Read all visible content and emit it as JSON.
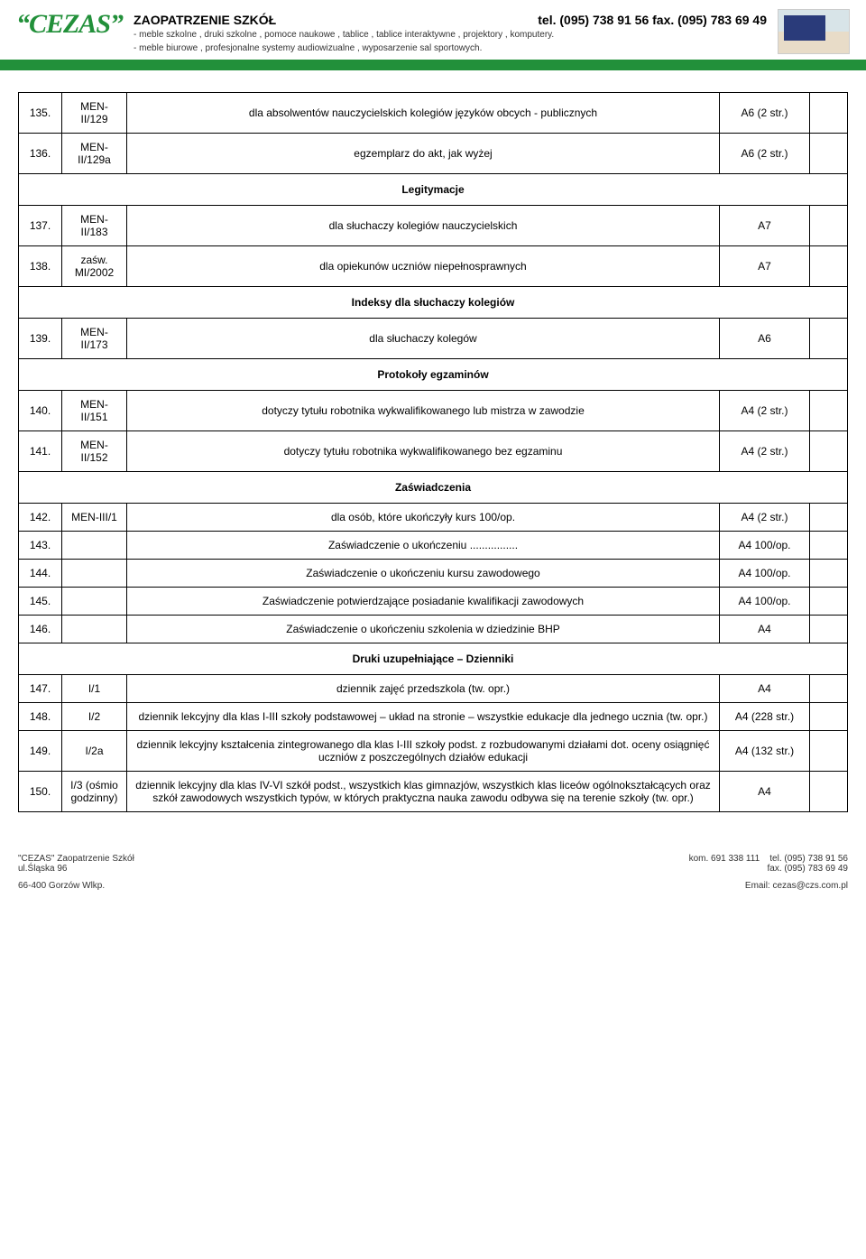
{
  "header": {
    "logo": "CEZAS",
    "title": "ZAOPATRZENIE SZKÓŁ",
    "phone": "tel. (095) 738 91 56  fax. (095) 783 69 49",
    "sub1": "- meble szkolne , druki szkolne , pomoce naukowe , tablice , tablice interaktywne , projektory , komputery.",
    "sub2": "- meble biurowe , profesjonalne systemy audiowizualne , wyposarzenie sal sportowych."
  },
  "sections": [
    {
      "type": "row",
      "num": "135.",
      "code": "MEN-II/129",
      "desc": "dla absolwentów nauczycielskich kolegiów języków obcych - publicznych",
      "fmt": "A6 (2 str.)"
    },
    {
      "type": "row",
      "num": "136.",
      "code": "MEN-II/129a",
      "desc": "egzemplarz do akt, jak wyżej",
      "fmt": "A6 (2 str.)"
    },
    {
      "type": "section",
      "label": "Legitymacje"
    },
    {
      "type": "row",
      "num": "137.",
      "code": "MEN-II/183",
      "desc": "dla słuchaczy kolegiów nauczycielskich",
      "fmt": "A7"
    },
    {
      "type": "row",
      "num": "138.",
      "code": "zaśw. MI/2002",
      "desc": "dla opiekunów uczniów niepełnosprawnych",
      "fmt": "A7"
    },
    {
      "type": "section",
      "label": "Indeksy dla słuchaczy kolegiów"
    },
    {
      "type": "row",
      "num": "139.",
      "code": "MEN-II/173",
      "desc": "dla słuchaczy kolegów",
      "fmt": "A6"
    },
    {
      "type": "section",
      "label": "Protokoły egzaminów"
    },
    {
      "type": "row",
      "num": "140.",
      "code": "MEN-II/151",
      "desc": "dotyczy tytułu robotnika wykwalifikowanego lub mistrza w zawodzie",
      "fmt": "A4 (2 str.)"
    },
    {
      "type": "row",
      "num": "141.",
      "code": "MEN-II/152",
      "desc": "dotyczy tytułu robotnika wykwalifikowanego bez egzaminu",
      "fmt": "A4 (2 str.)"
    },
    {
      "type": "section",
      "label": "Zaświadczenia"
    },
    {
      "type": "row",
      "num": "142.",
      "code": "MEN-III/1",
      "desc": "dla osób, które ukończyły kurs                      100/op.",
      "fmt": "A4 (2 str.)"
    },
    {
      "type": "row",
      "num": "143.",
      "code": "",
      "desc": "Zaświadczenie o ukończeniu ................",
      "fmt": "A4 100/op."
    },
    {
      "type": "row",
      "num": "144.",
      "code": "",
      "desc": "Zaświadczenie o ukończeniu kursu zawodowego",
      "fmt": "A4 100/op."
    },
    {
      "type": "row",
      "num": "145.",
      "code": "",
      "desc": "Zaświadczenie potwierdzające posiadanie kwalifikacji zawodowych",
      "fmt": "A4 100/op."
    },
    {
      "type": "row",
      "num": "146.",
      "code": "",
      "desc": "Zaświadczenie o ukończeniu szkolenia w dziedzinie BHP",
      "fmt": "A4"
    },
    {
      "type": "section",
      "label": "Druki uzupełniające –  Dzienniki"
    },
    {
      "type": "row",
      "num": "147.",
      "code": "I/1",
      "desc": "dziennik zajęć przedszkola  (tw. opr.)",
      "fmt": "A4"
    },
    {
      "type": "row",
      "num": "148.",
      "code": "I/2",
      "desc": "dziennik lekcyjny dla klas I-III szkoły podstawowej – układ na stronie – wszystkie edukacje dla jednego ucznia (tw. opr.)",
      "fmt": "A4 (228 str.)"
    },
    {
      "type": "row",
      "num": "149.",
      "code": "I/2a",
      "desc": "dziennik lekcyjny kształcenia zintegrowanego dla klas I-III szkoły podst. z rozbudowanymi działami dot. oceny osiągnięć uczniów z poszczególnych działów edukacji",
      "fmt": "A4 (132 str.)"
    },
    {
      "type": "row",
      "num": "150.",
      "code": "I/3 (ośmio godzinny)",
      "desc": "dziennik lekcyjny dla klas IV-VI szkół podst., wszystkich klas gimnazjów, wszystkich klas liceów ogólnokształcących oraz szkół zawodowych wszystkich typów, w których praktyczna nauka zawodu odbywa się na terenie szkoły (tw. opr.)",
      "fmt": "A4"
    }
  ],
  "footer": {
    "company": "\"CEZAS\" Zaopatrzenie Szkół",
    "street": "ul.Śląska 96",
    "mobile": "kom. 691 338 111",
    "tel": "tel. (095) 738 91 56",
    "fax": "fax. (095) 783 69 49",
    "city": "66-400 Gorzów Wlkp.",
    "email": "Email: cezas@czs.com.pl"
  }
}
